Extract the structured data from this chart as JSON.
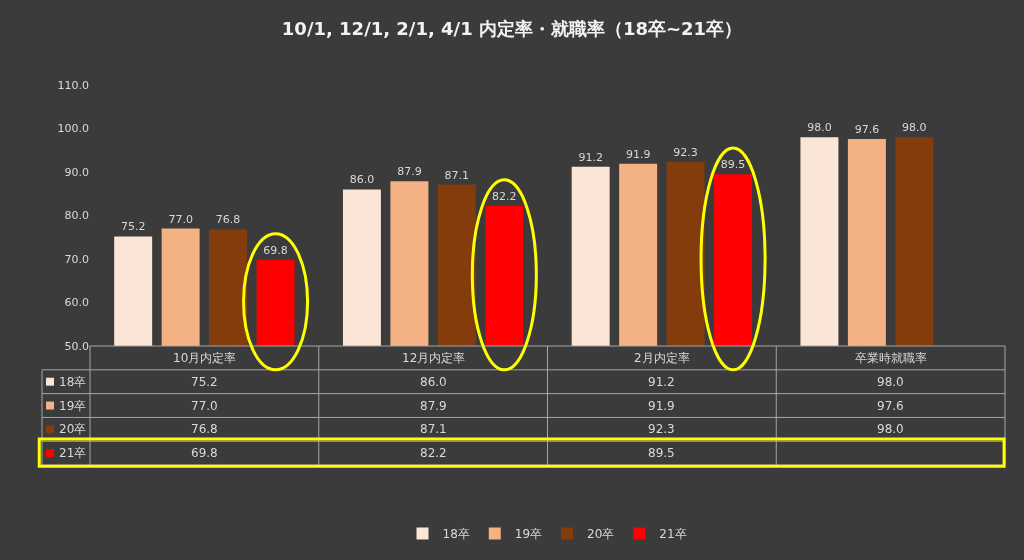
{
  "chart_data": {
    "type": "bar",
    "title": "10/1, 12/1, 2/1, 4/1 内定率・就職率（18卒~21卒）",
    "categories": [
      "10月内定率",
      "12月内定率",
      "2月内定率",
      "卒業時就職率"
    ],
    "series": [
      {
        "name": "18卒",
        "color": "#fbe5d6",
        "values": [
          75.2,
          86.0,
          91.2,
          98.0
        ],
        "value_labels": [
          "75.2",
          "86.0",
          "91.2",
          "98.0"
        ]
      },
      {
        "name": "19卒",
        "color": "#f4b183",
        "values": [
          77.0,
          87.9,
          91.9,
          97.6
        ],
        "value_labels": [
          "77.0",
          "87.9",
          "91.9",
          "97.6"
        ]
      },
      {
        "name": "20卒",
        "color": "#843c0c",
        "values": [
          76.8,
          87.1,
          92.3,
          98.0
        ],
        "value_labels": [
          "76.8",
          "87.1",
          "92.3",
          "98.0"
        ]
      },
      {
        "name": "21卒",
        "color": "#ff0000",
        "values": [
          69.8,
          82.2,
          89.5,
          null
        ],
        "value_labels": [
          "69.8",
          "82.2",
          "89.5",
          null
        ]
      }
    ],
    "ylim": [
      50,
      110
    ],
    "yticks": [
      {
        "value": 50,
        "label": "50.0"
      },
      {
        "value": 60,
        "label": "60.0"
      },
      {
        "value": 70,
        "label": "70.0"
      },
      {
        "value": 80,
        "label": "80.0"
      },
      {
        "value": 90,
        "label": "90.0"
      },
      {
        "value": 100,
        "label": "100.0"
      },
      {
        "value": 110,
        "label": "110.0"
      }
    ],
    "grid": false,
    "legend": "bottom"
  }
}
